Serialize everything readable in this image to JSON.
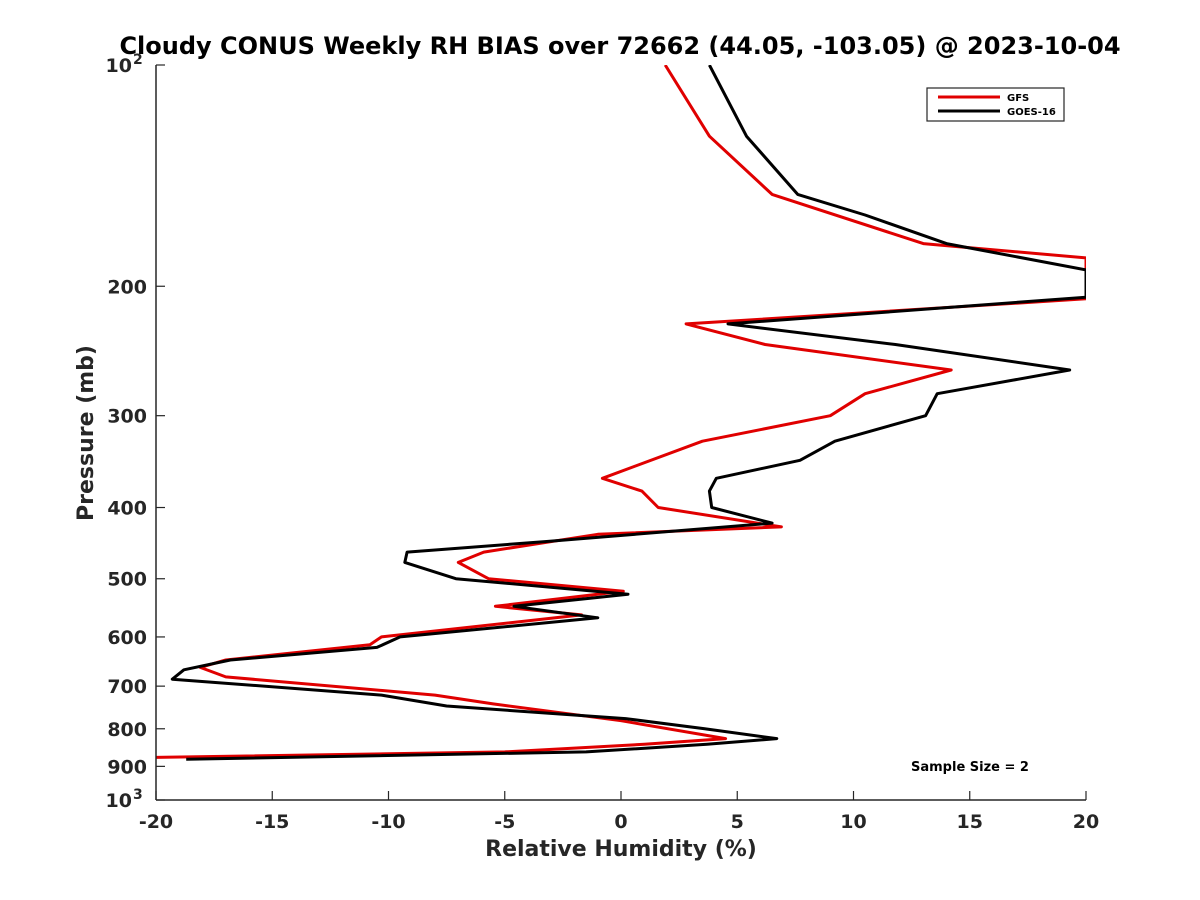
{
  "chart_data": {
    "type": "line",
    "title": "Cloudy CONUS Weekly RH BIAS over 72662 (44.05, -103.05) @ 2023-10-04",
    "xlabel": "Relative Humidity (%)",
    "ylabel": "Pressure (mb)",
    "xlim": [
      -20,
      20
    ],
    "ylim": [
      100,
      1000
    ],
    "yscale": "log",
    "y_reversed": true,
    "grid": false,
    "legend_position": "top-right",
    "x_ticks": [
      -20,
      -15,
      -10,
      -5,
      0,
      5,
      10,
      15,
      20
    ],
    "x_tick_labels": [
      "-20",
      "-15",
      "-10",
      "-5",
      "0",
      "5",
      "10",
      "15",
      "20"
    ],
    "y_ticks": [
      100,
      200,
      300,
      400,
      500,
      600,
      700,
      800,
      900,
      1000
    ],
    "y_tick_labels": [
      {
        "value": 100,
        "base": "10",
        "exp": "2"
      },
      {
        "value": 200,
        "base": "200",
        "exp": ""
      },
      {
        "value": 300,
        "base": "300",
        "exp": ""
      },
      {
        "value": 400,
        "base": "400",
        "exp": ""
      },
      {
        "value": 500,
        "base": "500",
        "exp": ""
      },
      {
        "value": 600,
        "base": "600",
        "exp": ""
      },
      {
        "value": 700,
        "base": "700",
        "exp": ""
      },
      {
        "value": 800,
        "base": "800",
        "exp": ""
      },
      {
        "value": 900,
        "base": "900",
        "exp": ""
      },
      {
        "value": 1000,
        "base": "10",
        "exp": "3"
      }
    ],
    "series": [
      {
        "name": "GFS",
        "color": "#e00000",
        "points": [
          {
            "x": 1.9,
            "p": 100
          },
          {
            "x": 3.8,
            "p": 125
          },
          {
            "x": 6.5,
            "p": 150
          },
          {
            "x": 13.0,
            "p": 175
          },
          {
            "x": 20.0,
            "p": 183
          },
          {
            "x": 20.0,
            "p": 208
          },
          {
            "x": 2.8,
            "p": 225
          },
          {
            "x": 6.2,
            "p": 240
          },
          {
            "x": 14.2,
            "p": 260
          },
          {
            "x": 10.5,
            "p": 280
          },
          {
            "x": 9.0,
            "p": 300
          },
          {
            "x": 3.5,
            "p": 325
          },
          {
            "x": -0.8,
            "p": 365
          },
          {
            "x": 0.9,
            "p": 380
          },
          {
            "x": 1.6,
            "p": 400
          },
          {
            "x": 6.9,
            "p": 425
          },
          {
            "x": -1.0,
            "p": 435
          },
          {
            "x": -5.9,
            "p": 460
          },
          {
            "x": -7.0,
            "p": 475
          },
          {
            "x": -5.7,
            "p": 500
          },
          {
            "x": 0.1,
            "p": 520
          },
          {
            "x": -5.4,
            "p": 545
          },
          {
            "x": -1.7,
            "p": 560
          },
          {
            "x": -10.3,
            "p": 600
          },
          {
            "x": -10.8,
            "p": 615
          },
          {
            "x": -17.0,
            "p": 645
          },
          {
            "x": -18.1,
            "p": 660
          },
          {
            "x": -17.0,
            "p": 680
          },
          {
            "x": -8.0,
            "p": 720
          },
          {
            "x": -5.5,
            "p": 740
          },
          {
            "x": 0.0,
            "p": 780
          },
          {
            "x": 4.5,
            "p": 825
          },
          {
            "x": 1.0,
            "p": 840
          },
          {
            "x": -5.0,
            "p": 860
          },
          {
            "x": -20.0,
            "p": 875
          }
        ]
      },
      {
        "name": "GOES-16",
        "color": "#000000",
        "points": [
          {
            "x": 3.8,
            "p": 100
          },
          {
            "x": 5.4,
            "p": 125
          },
          {
            "x": 7.6,
            "p": 150
          },
          {
            "x": 10.5,
            "p": 160
          },
          {
            "x": 14.0,
            "p": 175
          },
          {
            "x": 20.0,
            "p": 190
          },
          {
            "x": 20.0,
            "p": 207
          },
          {
            "x": 4.6,
            "p": 225
          },
          {
            "x": 11.8,
            "p": 240
          },
          {
            "x": 19.3,
            "p": 260
          },
          {
            "x": 13.6,
            "p": 280
          },
          {
            "x": 13.1,
            "p": 300
          },
          {
            "x": 9.2,
            "p": 325
          },
          {
            "x": 7.7,
            "p": 345
          },
          {
            "x": 4.1,
            "p": 365
          },
          {
            "x": 3.8,
            "p": 380
          },
          {
            "x": 3.9,
            "p": 400
          },
          {
            "x": 6.5,
            "p": 420
          },
          {
            "x": -3.2,
            "p": 445
          },
          {
            "x": -9.2,
            "p": 460
          },
          {
            "x": -9.3,
            "p": 475
          },
          {
            "x": -7.1,
            "p": 500
          },
          {
            "x": 0.3,
            "p": 525
          },
          {
            "x": -4.6,
            "p": 545
          },
          {
            "x": -1.0,
            "p": 565
          },
          {
            "x": -9.5,
            "p": 600
          },
          {
            "x": -10.5,
            "p": 620
          },
          {
            "x": -16.8,
            "p": 645
          },
          {
            "x": -18.8,
            "p": 665
          },
          {
            "x": -19.3,
            "p": 685
          },
          {
            "x": -10.3,
            "p": 720
          },
          {
            "x": -7.5,
            "p": 745
          },
          {
            "x": 0.2,
            "p": 775
          },
          {
            "x": 3.6,
            "p": 800
          },
          {
            "x": 6.7,
            "p": 825
          },
          {
            "x": 3.7,
            "p": 840
          },
          {
            "x": -1.5,
            "p": 860
          },
          {
            "x": -18.7,
            "p": 880
          }
        ]
      }
    ],
    "annotations": [
      {
        "text": "Sample Size = 2"
      }
    ]
  }
}
